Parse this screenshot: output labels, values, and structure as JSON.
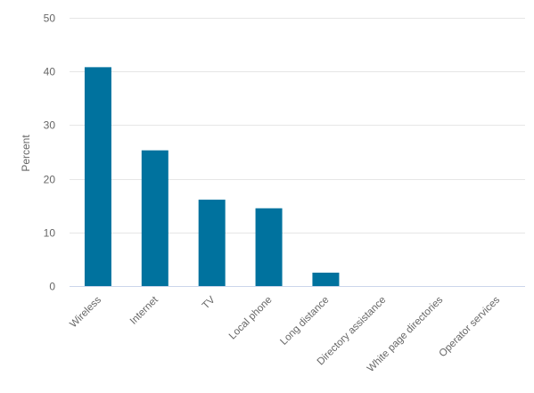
{
  "chart_data": {
    "type": "bar",
    "title": "",
    "xlabel": "",
    "ylabel": "Percent",
    "ylim": [
      0,
      50
    ],
    "yticks": [
      0,
      10,
      20,
      30,
      40,
      50
    ],
    "grid": true,
    "legend": "none",
    "categories": [
      "Wireless",
      "Internet",
      "TV",
      "Local phone",
      "Long distance",
      "Directory assistance",
      "White page directories",
      "Operator services"
    ],
    "values": [
      40.8,
      25.3,
      16.1,
      14.5,
      2.5,
      0,
      0,
      0
    ],
    "colors": {
      "bar": "#00729e",
      "grid": "#e6e6e6",
      "axis": "#ccd6eb",
      "text": "#666666"
    }
  }
}
